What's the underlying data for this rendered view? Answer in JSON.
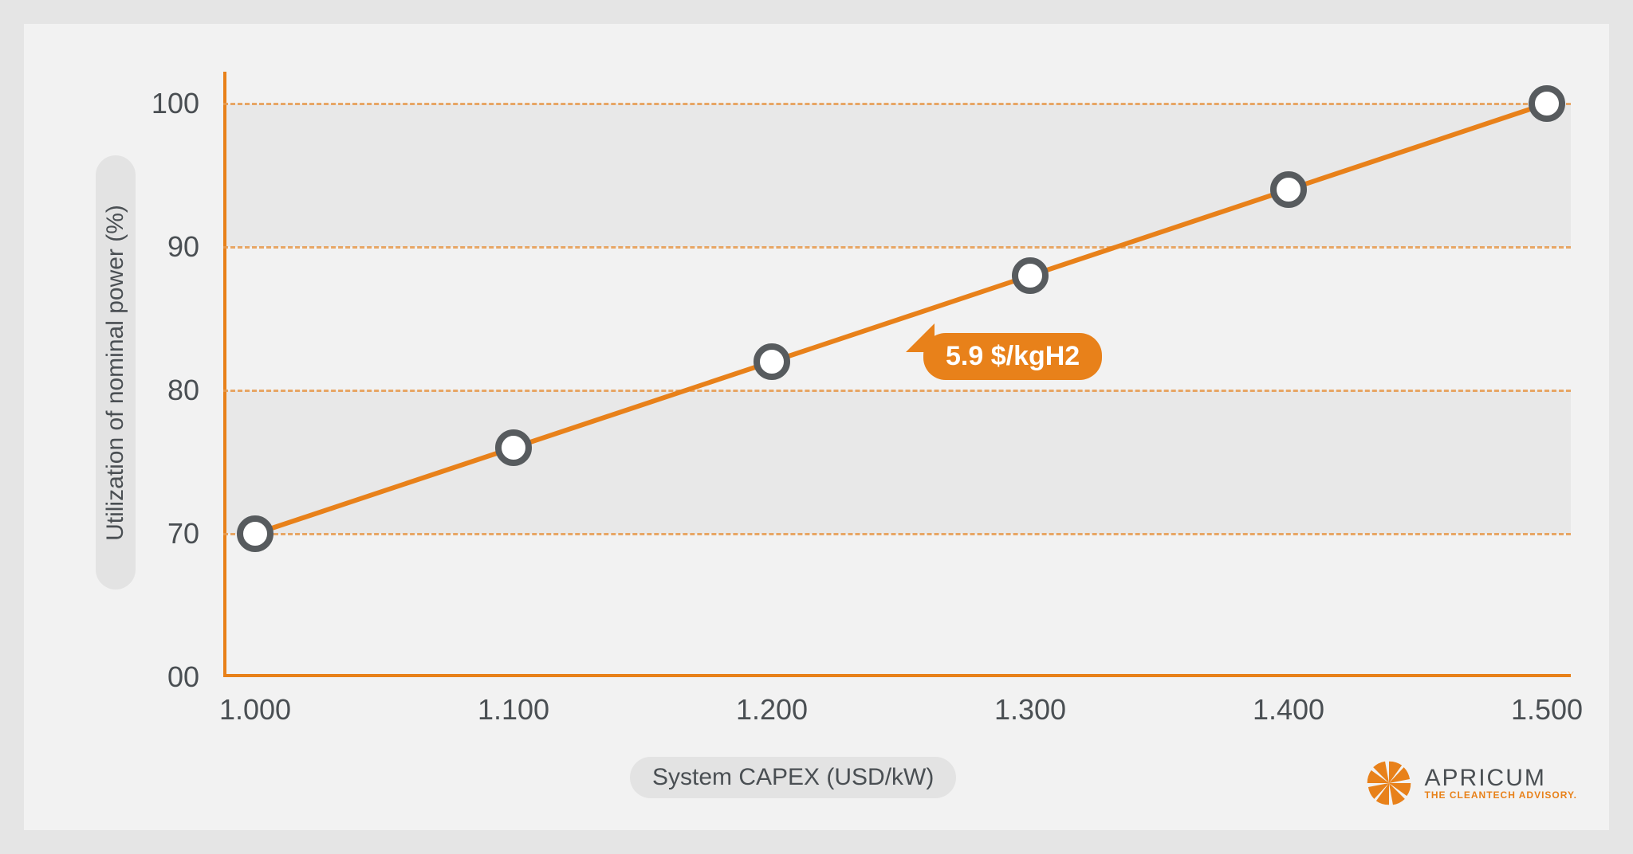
{
  "chart": {
    "type": "line",
    "x_label": "System CAPEX (USD/kW)",
    "y_label": "Utilization of nominal power (%)",
    "x_values": [
      1000,
      1100,
      1200,
      1300,
      1400,
      1500
    ],
    "x_tick_labels": [
      "1.000",
      "1.100",
      "1.200",
      "1.300",
      "1.400",
      "1.500"
    ],
    "y_values": [
      70,
      76,
      82,
      88,
      94,
      100
    ],
    "y_ticks": [
      0,
      70,
      80,
      90,
      100
    ],
    "y_tick_labels": [
      "00",
      "70",
      "80",
      "90",
      "100"
    ],
    "xlim": [
      1000,
      1500
    ],
    "ylim_display": "piecewise (gap below 70)",
    "line_color": "#e8811a",
    "line_width": 6,
    "marker_fill": "#ffffff",
    "marker_border_color": "#575b5e",
    "marker_border_width": 8,
    "marker_radius": 15,
    "grid_color": "#e79a4d",
    "grid_style": "dashed",
    "band_color": "#e8e8e8",
    "panel_background": "#f2f2f2",
    "page_background": "#e5e5e5",
    "axis_color": "#e8811a",
    "tick_font_size": 36,
    "label_font_size": 30,
    "label_pill_bg": "#e3e3e3",
    "callout": {
      "text": "5.9 $/kgH2",
      "bg": "#e8811a",
      "color": "#ffffff",
      "font_size": 34,
      "anchor_index_between": [
        2,
        3
      ]
    }
  },
  "logo": {
    "name": "APRICUM",
    "tagline": "THE CLEANTECH ADVISORY.",
    "swirl_color": "#e8811a",
    "name_color": "#4a4f53"
  }
}
